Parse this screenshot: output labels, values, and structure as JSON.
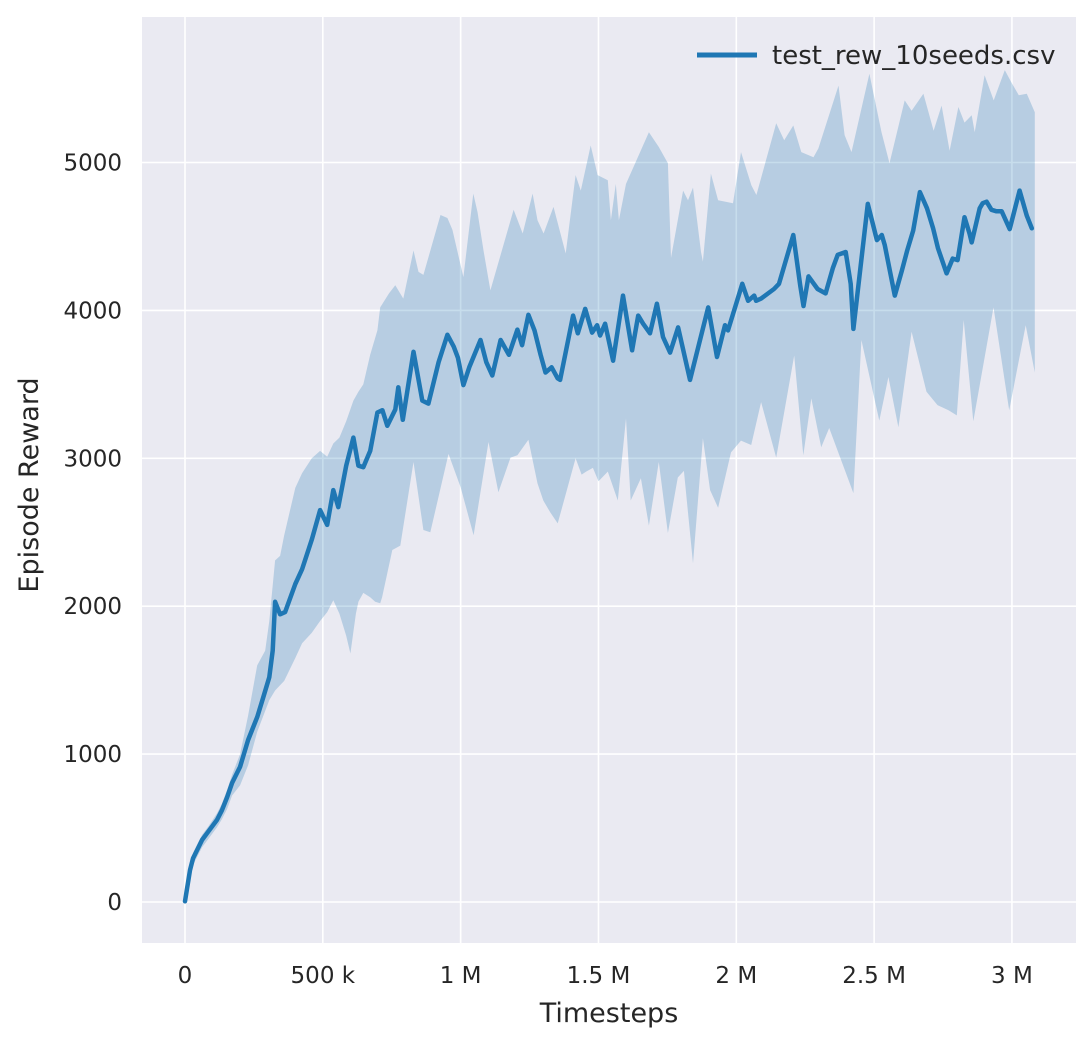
{
  "figure": {
    "background": "#ffffff"
  },
  "chart_data": {
    "type": "line",
    "title": "",
    "xlabel": "Timesteps",
    "ylabel": "Episode Reward",
    "grid": true,
    "legend": {
      "position": "upper right",
      "label": "test_rew_10seeds.csv"
    },
    "colors": {
      "line": "#1f77b4",
      "band_fill": "#1f77b4",
      "band_opacity": 0.25,
      "plot_background": "#eaeaf2",
      "gridline": "#ffffff",
      "text": "#262626"
    },
    "x_axis": {
      "units": "timesteps",
      "lim_thousands": [
        -156,
        3233
      ],
      "ticks": [
        {
          "t_k": 0,
          "label": "0"
        },
        {
          "t_k": 500,
          "label": "500 k"
        },
        {
          "t_k": 1000,
          "label": "1 M"
        },
        {
          "t_k": 1500,
          "label": "1.5 M"
        },
        {
          "t_k": 2000,
          "label": "2 M"
        },
        {
          "t_k": 2500,
          "label": "2.5 M"
        },
        {
          "t_k": 3000,
          "label": "3 M"
        }
      ]
    },
    "y_axis": {
      "units": "episode reward",
      "lim": [
        -277,
        5984
      ],
      "ticks": [
        {
          "v": 0,
          "label": "0"
        },
        {
          "v": 1000,
          "label": "1000"
        },
        {
          "v": 2000,
          "label": "2000"
        },
        {
          "v": 3000,
          "label": "3000"
        },
        {
          "v": 4000,
          "label": "4000"
        },
        {
          "v": 5000,
          "label": "5000"
        }
      ]
    },
    "series": [
      {
        "name": "test_rew_10seeds.csv",
        "role": "mean",
        "points_tk_v": [
          [
            0,
            5
          ],
          [
            18,
            215
          ],
          [
            29,
            295
          ],
          [
            62,
            420
          ],
          [
            84,
            475
          ],
          [
            116,
            555
          ],
          [
            134,
            620
          ],
          [
            153,
            710
          ],
          [
            171,
            805
          ],
          [
            200,
            915
          ],
          [
            229,
            1095
          ],
          [
            262,
            1250
          ],
          [
            284,
            1385
          ],
          [
            306,
            1520
          ],
          [
            318,
            1700
          ],
          [
            327,
            2030
          ],
          [
            345,
            1945
          ],
          [
            363,
            1960
          ],
          [
            400,
            2150
          ],
          [
            425,
            2250
          ],
          [
            460,
            2450
          ],
          [
            490,
            2650
          ],
          [
            516,
            2550
          ],
          [
            538,
            2785
          ],
          [
            556,
            2670
          ],
          [
            585,
            2950
          ],
          [
            611,
            3140
          ],
          [
            629,
            2950
          ],
          [
            647,
            2940
          ],
          [
            672,
            3050
          ],
          [
            698,
            3310
          ],
          [
            716,
            3325
          ],
          [
            734,
            3220
          ],
          [
            763,
            3330
          ],
          [
            774,
            3480
          ],
          [
            790,
            3260
          ],
          [
            829,
            3720
          ],
          [
            861,
            3390
          ],
          [
            883,
            3370
          ],
          [
            920,
            3650
          ],
          [
            952,
            3835
          ],
          [
            975,
            3755
          ],
          [
            990,
            3680
          ],
          [
            1010,
            3495
          ],
          [
            1032,
            3620
          ],
          [
            1072,
            3800
          ],
          [
            1093,
            3650
          ],
          [
            1115,
            3560
          ],
          [
            1145,
            3800
          ],
          [
            1175,
            3700
          ],
          [
            1206,
            3870
          ],
          [
            1223,
            3765
          ],
          [
            1246,
            3970
          ],
          [
            1268,
            3865
          ],
          [
            1290,
            3700
          ],
          [
            1308,
            3580
          ],
          [
            1330,
            3615
          ],
          [
            1352,
            3540
          ],
          [
            1361,
            3530
          ],
          [
            1408,
            3965
          ],
          [
            1425,
            3845
          ],
          [
            1452,
            4010
          ],
          [
            1477,
            3850
          ],
          [
            1495,
            3900
          ],
          [
            1506,
            3830
          ],
          [
            1524,
            3910
          ],
          [
            1553,
            3660
          ],
          [
            1589,
            4100
          ],
          [
            1622,
            3730
          ],
          [
            1644,
            3965
          ],
          [
            1662,
            3910
          ],
          [
            1687,
            3845
          ],
          [
            1712,
            4045
          ],
          [
            1734,
            3820
          ],
          [
            1760,
            3715
          ],
          [
            1789,
            3885
          ],
          [
            1832,
            3530
          ],
          [
            1898,
            4020
          ],
          [
            1930,
            3685
          ],
          [
            1959,
            3900
          ],
          [
            1970,
            3865
          ],
          [
            2022,
            4180
          ],
          [
            2043,
            4065
          ],
          [
            2065,
            4100
          ],
          [
            2072,
            4065
          ],
          [
            2090,
            4080
          ],
          [
            2137,
            4145
          ],
          [
            2155,
            4180
          ],
          [
            2207,
            4510
          ],
          [
            2232,
            4170
          ],
          [
            2244,
            4030
          ],
          [
            2262,
            4230
          ],
          [
            2295,
            4145
          ],
          [
            2324,
            4115
          ],
          [
            2350,
            4285
          ],
          [
            2368,
            4375
          ],
          [
            2397,
            4395
          ],
          [
            2415,
            4180
          ],
          [
            2425,
            3875
          ],
          [
            2477,
            4720
          ],
          [
            2510,
            4475
          ],
          [
            2528,
            4510
          ],
          [
            2539,
            4440
          ],
          [
            2575,
            4100
          ],
          [
            2601,
            4270
          ],
          [
            2620,
            4405
          ],
          [
            2642,
            4540
          ],
          [
            2666,
            4800
          ],
          [
            2692,
            4690
          ],
          [
            2714,
            4555
          ],
          [
            2732,
            4420
          ],
          [
            2763,
            4250
          ],
          [
            2785,
            4350
          ],
          [
            2803,
            4340
          ],
          [
            2828,
            4630
          ],
          [
            2846,
            4520
          ],
          [
            2854,
            4460
          ],
          [
            2883,
            4690
          ],
          [
            2894,
            4725
          ],
          [
            2908,
            4735
          ],
          [
            2926,
            4680
          ],
          [
            2944,
            4670
          ],
          [
            2963,
            4670
          ],
          [
            2981,
            4595
          ],
          [
            2992,
            4550
          ],
          [
            3028,
            4810
          ],
          [
            3054,
            4640
          ],
          [
            3072,
            4555
          ]
        ]
      }
    ],
    "band": {
      "role": "min-max envelope across seeds",
      "upper_tk_v": [
        [
          0,
          30
        ],
        [
          18,
          240
        ],
        [
          29,
          330
        ],
        [
          62,
          455
        ],
        [
          84,
          510
        ],
        [
          116,
          600
        ],
        [
          134,
          665
        ],
        [
          153,
          760
        ],
        [
          171,
          860
        ],
        [
          200,
          1000
        ],
        [
          229,
          1260
        ],
        [
          262,
          1600
        ],
        [
          291,
          1700
        ],
        [
          306,
          1900
        ],
        [
          327,
          2310
        ],
        [
          345,
          2340
        ],
        [
          360,
          2480
        ],
        [
          400,
          2800
        ],
        [
          425,
          2900
        ],
        [
          460,
          3000
        ],
        [
          490,
          3050
        ],
        [
          516,
          3010
        ],
        [
          538,
          3100
        ],
        [
          560,
          3140
        ],
        [
          585,
          3250
        ],
        [
          611,
          3390
        ],
        [
          629,
          3450
        ],
        [
          647,
          3500
        ],
        [
          672,
          3700
        ],
        [
          698,
          3865
        ],
        [
          708,
          4020
        ],
        [
          740,
          4115
        ],
        [
          763,
          4170
        ],
        [
          792,
          4080
        ],
        [
          829,
          4405
        ],
        [
          847,
          4260
        ],
        [
          865,
          4240
        ],
        [
          927,
          4645
        ],
        [
          952,
          4625
        ],
        [
          970,
          4545
        ],
        [
          1010,
          4225
        ],
        [
          1046,
          4790
        ],
        [
          1061,
          4665
        ],
        [
          1083,
          4405
        ],
        [
          1108,
          4135
        ],
        [
          1192,
          4680
        ],
        [
          1225,
          4520
        ],
        [
          1261,
          4790
        ],
        [
          1279,
          4610
        ],
        [
          1301,
          4520
        ],
        [
          1337,
          4700
        ],
        [
          1381,
          4385
        ],
        [
          1417,
          4915
        ],
        [
          1436,
          4810
        ],
        [
          1472,
          5115
        ],
        [
          1497,
          4915
        ],
        [
          1534,
          4880
        ],
        [
          1545,
          4610
        ],
        [
          1563,
          4855
        ],
        [
          1574,
          4610
        ],
        [
          1600,
          4855
        ],
        [
          1683,
          5205
        ],
        [
          1719,
          5105
        ],
        [
          1752,
          4995
        ],
        [
          1763,
          4355
        ],
        [
          1807,
          4810
        ],
        [
          1825,
          4745
        ],
        [
          1843,
          4830
        ],
        [
          1872,
          4395
        ],
        [
          1879,
          4330
        ],
        [
          1908,
          4925
        ],
        [
          1934,
          4745
        ],
        [
          1988,
          4725
        ],
        [
          2017,
          5070
        ],
        [
          2055,
          4845
        ],
        [
          2073,
          4780
        ],
        [
          2145,
          5265
        ],
        [
          2174,
          5150
        ],
        [
          2207,
          5250
        ],
        [
          2236,
          5070
        ],
        [
          2280,
          5035
        ],
        [
          2298,
          5095
        ],
        [
          2371,
          5520
        ],
        [
          2393,
          5185
        ],
        [
          2418,
          5070
        ],
        [
          2483,
          5600
        ],
        [
          2527,
          5205
        ],
        [
          2556,
          4995
        ],
        [
          2611,
          5420
        ],
        [
          2636,
          5350
        ],
        [
          2679,
          5465
        ],
        [
          2716,
          5215
        ],
        [
          2745,
          5385
        ],
        [
          2774,
          5080
        ],
        [
          2806,
          5375
        ],
        [
          2828,
          5270
        ],
        [
          2854,
          5320
        ],
        [
          2865,
          5205
        ],
        [
          2901,
          5590
        ],
        [
          2934,
          5420
        ],
        [
          2974,
          5625
        ],
        [
          3000,
          5535
        ],
        [
          3025,
          5455
        ],
        [
          3054,
          5465
        ],
        [
          3083,
          5340
        ]
      ],
      "lower_tk_v": [
        [
          0,
          -15
        ],
        [
          18,
          165
        ],
        [
          29,
          250
        ],
        [
          62,
          370
        ],
        [
          84,
          425
        ],
        [
          116,
          505
        ],
        [
          134,
          560
        ],
        [
          153,
          630
        ],
        [
          171,
          720
        ],
        [
          200,
          790
        ],
        [
          229,
          925
        ],
        [
          262,
          1150
        ],
        [
          306,
          1365
        ],
        [
          327,
          1430
        ],
        [
          360,
          1495
        ],
        [
          400,
          1650
        ],
        [
          425,
          1750
        ],
        [
          460,
          1820
        ],
        [
          490,
          1900
        ],
        [
          516,
          1960
        ],
        [
          538,
          2040
        ],
        [
          560,
          1950
        ],
        [
          585,
          1800
        ],
        [
          600,
          1680
        ],
        [
          620,
          1950
        ],
        [
          629,
          2030
        ],
        [
          647,
          2090
        ],
        [
          672,
          2060
        ],
        [
          690,
          2030
        ],
        [
          708,
          2020
        ],
        [
          715,
          2060
        ],
        [
          752,
          2380
        ],
        [
          781,
          2410
        ],
        [
          829,
          2975
        ],
        [
          865,
          2515
        ],
        [
          890,
          2500
        ],
        [
          956,
          3030
        ],
        [
          1000,
          2805
        ],
        [
          1047,
          2480
        ],
        [
          1101,
          3110
        ],
        [
          1137,
          2770
        ],
        [
          1181,
          3005
        ],
        [
          1206,
          3020
        ],
        [
          1246,
          3125
        ],
        [
          1279,
          2830
        ],
        [
          1300,
          2715
        ],
        [
          1325,
          2635
        ],
        [
          1352,
          2560
        ],
        [
          1417,
          3000
        ],
        [
          1439,
          2890
        ],
        [
          1455,
          2910
        ],
        [
          1480,
          2935
        ],
        [
          1500,
          2845
        ],
        [
          1534,
          2910
        ],
        [
          1570,
          2715
        ],
        [
          1600,
          3270
        ],
        [
          1617,
          2715
        ],
        [
          1654,
          2865
        ],
        [
          1683,
          2545
        ],
        [
          1719,
          2975
        ],
        [
          1752,
          2495
        ],
        [
          1788,
          2870
        ],
        [
          1810,
          2915
        ],
        [
          1843,
          2290
        ],
        [
          1879,
          3135
        ],
        [
          1905,
          2785
        ],
        [
          1934,
          2665
        ],
        [
          1981,
          3040
        ],
        [
          2017,
          3120
        ],
        [
          2054,
          3090
        ],
        [
          2090,
          3380
        ],
        [
          2145,
          3005
        ],
        [
          2210,
          3695
        ],
        [
          2243,
          3020
        ],
        [
          2272,
          3405
        ],
        [
          2308,
          3075
        ],
        [
          2337,
          3205
        ],
        [
          2425,
          2765
        ],
        [
          2454,
          3800
        ],
        [
          2519,
          3255
        ],
        [
          2552,
          3550
        ],
        [
          2588,
          3210
        ],
        [
          2636,
          3855
        ],
        [
          2690,
          3450
        ],
        [
          2730,
          3360
        ],
        [
          2770,
          3325
        ],
        [
          2800,
          3290
        ],
        [
          2825,
          3935
        ],
        [
          2860,
          3250
        ],
        [
          2933,
          4020
        ],
        [
          2990,
          3325
        ],
        [
          3050,
          3900
        ],
        [
          3083,
          3580
        ]
      ]
    }
  }
}
